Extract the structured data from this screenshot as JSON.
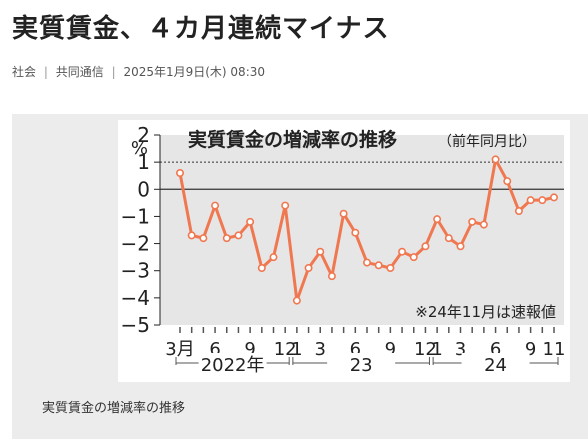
{
  "article": {
    "headline": "実質賃金、４カ月連続マイナス",
    "category": "社会",
    "source": "共同通信",
    "timestamp": "2025年1月9日(木) 08:30",
    "separator": "|"
  },
  "figure": {
    "caption": "実質賃金の増減率の推移"
  },
  "colors": {
    "line": "#f07850",
    "plot_bg": "#e6e6e6",
    "panel_bg": "#ececec"
  },
  "chart_data": {
    "type": "line",
    "title": "実質賃金の増減率の推移",
    "subtitle": "（前年同月比）",
    "ylabel": "%",
    "ylim": [
      -5,
      2
    ],
    "yticks": [
      2,
      1,
      0,
      -1,
      -2,
      -3,
      -4,
      -5
    ],
    "ytick_labels": [
      "2",
      "1",
      "0",
      "−1",
      "−2",
      "−3",
      "−4",
      "−5"
    ],
    "grid": false,
    "reference_lines": [
      {
        "y": 0,
        "style": "solid"
      },
      {
        "y": 1,
        "style": "dotted"
      }
    ],
    "annotation": "※24年11月は速報値",
    "x": [
      "2022-03",
      "2022-04",
      "2022-05",
      "2022-06",
      "2022-07",
      "2022-08",
      "2022-09",
      "2022-10",
      "2022-11",
      "2022-12",
      "2023-01",
      "2023-02",
      "2023-03",
      "2023-04",
      "2023-05",
      "2023-06",
      "2023-07",
      "2023-08",
      "2023-09",
      "2023-10",
      "2023-11",
      "2023-12",
      "2024-01",
      "2024-02",
      "2024-03",
      "2024-04",
      "2024-05",
      "2024-06",
      "2024-07",
      "2024-08",
      "2024-09",
      "2024-10",
      "2024-11"
    ],
    "values": [
      0.6,
      -1.7,
      -1.8,
      -0.6,
      -1.8,
      -1.7,
      -1.2,
      -2.9,
      -2.5,
      -0.6,
      -4.1,
      -2.9,
      -2.3,
      -3.2,
      -0.9,
      -1.6,
      -2.7,
      -2.8,
      -2.9,
      -2.3,
      -2.5,
      -2.1,
      -1.1,
      -1.8,
      -2.1,
      -1.2,
      -1.3,
      1.1,
      0.3,
      -0.8,
      -0.4,
      -0.4,
      -0.3
    ],
    "month_tick_labels": [
      {
        "x": "2022-03",
        "label": "3月"
      },
      {
        "x": "2022-06",
        "label": "6"
      },
      {
        "x": "2022-09",
        "label": "9"
      },
      {
        "x": "2022-12",
        "label": "12"
      },
      {
        "x": "2023-01",
        "label": "1"
      },
      {
        "x": "2023-03",
        "label": "3"
      },
      {
        "x": "2023-06",
        "label": "6"
      },
      {
        "x": "2023-09",
        "label": "9"
      },
      {
        "x": "2023-12",
        "label": "12"
      },
      {
        "x": "2024-01",
        "label": "1"
      },
      {
        "x": "2024-03",
        "label": "3"
      },
      {
        "x": "2024-06",
        "label": "6"
      },
      {
        "x": "2024-09",
        "label": "9"
      },
      {
        "x": "2024-11",
        "label": "11"
      }
    ],
    "year_labels": [
      {
        "from": "2022-03",
        "to": "2022-12",
        "label": "2022年"
      },
      {
        "from": "2023-01",
        "to": "2023-12",
        "label": "23"
      },
      {
        "from": "2024-01",
        "to": "2024-11",
        "label": "24"
      }
    ]
  }
}
